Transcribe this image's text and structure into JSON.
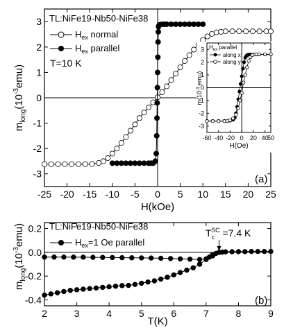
{
  "chart_data": [
    {
      "type": "line",
      "panel_label": "(a)",
      "sample_label": "TL:NiFe19-Nb50-NiFe38",
      "temperature_label": "T=10 K",
      "xlabel": "H(kOe)",
      "ylabel": "m_long(10^-3 emu)",
      "xlim": [
        -25,
        25
      ],
      "ylim": [
        -3.5,
        3.5
      ],
      "xticks": [
        -25,
        -20,
        -15,
        -10,
        -5,
        0,
        5,
        10,
        15,
        20,
        25
      ],
      "yticks": [
        -3,
        -2,
        -1,
        0,
        1,
        2,
        3
      ],
      "legend_placement": "top-left",
      "series": [
        {
          "name": "H_ex normal",
          "marker": "open-circle",
          "x": [
            -25,
            -23.5,
            -22,
            -20.5,
            -19,
            -17.5,
            -16,
            -14.5,
            -13,
            -12,
            -11,
            -10,
            -9,
            -8,
            -7,
            -6,
            -5,
            -4,
            -3,
            -2,
            -1,
            0,
            1,
            2,
            3,
            4,
            5,
            6,
            7,
            8,
            9,
            10,
            11,
            12,
            13,
            14,
            15,
            16.5,
            18,
            19.5,
            21,
            22.5,
            24,
            25
          ],
          "y": [
            -2.62,
            -2.62,
            -2.62,
            -2.62,
            -2.62,
            -2.62,
            -2.62,
            -2.61,
            -2.57,
            -2.5,
            -2.38,
            -2.2,
            -2.0,
            -1.78,
            -1.55,
            -1.3,
            -1.05,
            -0.8,
            -0.58,
            -0.38,
            -0.18,
            0.02,
            0.22,
            0.45,
            0.7,
            0.95,
            1.2,
            1.45,
            1.68,
            1.9,
            2.1,
            2.28,
            2.42,
            2.52,
            2.58,
            2.6,
            2.62,
            2.62,
            2.62,
            2.62,
            2.62,
            2.62,
            2.62,
            2.62
          ]
        },
        {
          "name": "H_ex parallel",
          "marker": "filled-circle",
          "x": [
            -10,
            -9,
            -8,
            -7,
            -6,
            -5,
            -4,
            -3,
            -2,
            -1.5,
            -1,
            -0.5,
            -0.3,
            -0.2,
            -0.15,
            -0.1,
            -0.05,
            0,
            0.05,
            0.1,
            0.15,
            0.2,
            0.3,
            0.5,
            1,
            1.5,
            2,
            3,
            4,
            5,
            6,
            7,
            8,
            9,
            10
          ],
          "y": [
            -2.58,
            -2.58,
            -2.58,
            -2.58,
            -2.58,
            -2.58,
            -2.58,
            -2.58,
            -2.58,
            -2.58,
            -2.58,
            -2.5,
            -2.2,
            -1.5,
            -0.8,
            -0.2,
            0.4,
            1.0,
            1.6,
            2.2,
            2.6,
            2.8,
            2.85,
            2.88,
            2.9,
            2.9,
            2.9,
            2.9,
            2.9,
            2.9,
            2.9,
            2.9,
            2.9,
            2.9,
            2.9
          ]
        }
      ],
      "inset": {
        "title": "H_ex parallel",
        "xlabel": "H(Oe)",
        "ylabel": "m(10^-3 emu)",
        "xlim": [
          -60,
          50
        ],
        "ylim": [
          -3.5,
          3.5
        ],
        "xticks": [
          -60,
          -40,
          -20,
          0,
          20,
          40,
          50
        ],
        "yticks": [
          -3,
          -2,
          -1,
          0,
          1,
          2,
          3
        ],
        "series": [
          {
            "name": "along x",
            "marker": "filled-circle",
            "x": [
              -60,
              -50,
              -40,
              -30,
              -25,
              -20,
              -15,
              -12,
              -10,
              -8,
              -6,
              -4,
              -2,
              0,
              2,
              4,
              6,
              8,
              10,
              12,
              15,
              20,
              25,
              30,
              40,
              50
            ],
            "y": [
              -2.6,
              -2.6,
              -2.6,
              -2.6,
              -2.6,
              -2.58,
              -2.5,
              -2.35,
              -2.0,
              -1.5,
              -0.9,
              -0.3,
              0.3,
              0.9,
              1.5,
              2.0,
              2.35,
              2.5,
              2.58,
              2.6,
              2.6,
              2.6,
              2.6,
              2.6,
              2.6,
              2.6
            ]
          },
          {
            "name": "along y",
            "marker": "open-circle",
            "x": [
              -60,
              -50,
              -40,
              -30,
              -25,
              -20,
              -15,
              -10,
              -6,
              -3,
              0,
              3,
              6,
              9,
              12,
              15,
              18,
              22,
              25,
              30,
              40,
              50
            ],
            "y": [
              -2.62,
              -2.62,
              -2.62,
              -2.62,
              -2.6,
              -2.55,
              -2.4,
              -2.1,
              -1.6,
              -1.0,
              -0.4,
              0.4,
              1.0,
              1.6,
              2.1,
              2.4,
              2.55,
              2.6,
              2.62,
              2.62,
              2.62,
              2.62
            ]
          }
        ]
      }
    },
    {
      "type": "line",
      "panel_label": "(b)",
      "sample_label": "TL:NiFe19-Nb50-NiFe38",
      "xlabel": "T(K)",
      "ylabel": "m_long(10^-3 emu)",
      "xlim": [
        2,
        9
      ],
      "ylim": [
        -0.45,
        0.25
      ],
      "xticks": [
        2,
        3,
        4,
        5,
        6,
        7,
        8,
        9
      ],
      "yticks": [
        -0.4,
        -0.2,
        0.0,
        0.2
      ],
      "legend_placement": "top-left",
      "annotation": "T_c^SC = 7.4 K",
      "tc": 7.4,
      "series": [
        {
          "name": "H_ex=1 Oe parallel",
          "marker": "filled-circle",
          "x": [
            2.0,
            2.2,
            2.4,
            2.6,
            2.8,
            3.0,
            3.2,
            3.4,
            3.6,
            3.8,
            4.0,
            4.2,
            4.4,
            4.6,
            4.8,
            5.0,
            5.2,
            5.4,
            5.6,
            5.8,
            6.0,
            6.2,
            6.4,
            6.6,
            6.8,
            7.0,
            7.1,
            7.2,
            7.3,
            7.4,
            7.5,
            7.6,
            7.8,
            8.0,
            8.2,
            8.4,
            8.6,
            8.8,
            9.0
          ],
          "y": [
            -0.36,
            -0.35,
            -0.34,
            -0.33,
            -0.32,
            -0.315,
            -0.31,
            -0.305,
            -0.3,
            -0.295,
            -0.29,
            -0.285,
            -0.28,
            -0.278,
            -0.27,
            -0.26,
            -0.25,
            -0.24,
            -0.225,
            -0.21,
            -0.19,
            -0.17,
            -0.15,
            -0.13,
            -0.1,
            -0.06,
            -0.04,
            -0.02,
            -0.01,
            0.0,
            0.002,
            0.004,
            0.005,
            0.006,
            0.006,
            0.007,
            0.007,
            0.007,
            0.007
          ]
        },
        {
          "name": "",
          "marker": "filled-circle",
          "x": [
            2.0,
            2.3,
            2.6,
            2.9,
            3.2,
            3.5,
            3.8,
            4.1,
            4.4,
            4.7,
            5.0,
            5.3,
            5.6,
            5.9,
            6.2,
            6.5,
            6.8,
            7.0,
            7.2,
            7.4
          ],
          "y": [
            -0.04,
            -0.04,
            -0.04,
            -0.041,
            -0.041,
            -0.042,
            -0.043,
            -0.044,
            -0.045,
            -0.046,
            -0.047,
            -0.048,
            -0.05,
            -0.052,
            -0.055,
            -0.058,
            -0.06,
            -0.055,
            -0.03,
            0.0
          ]
        }
      ]
    }
  ]
}
